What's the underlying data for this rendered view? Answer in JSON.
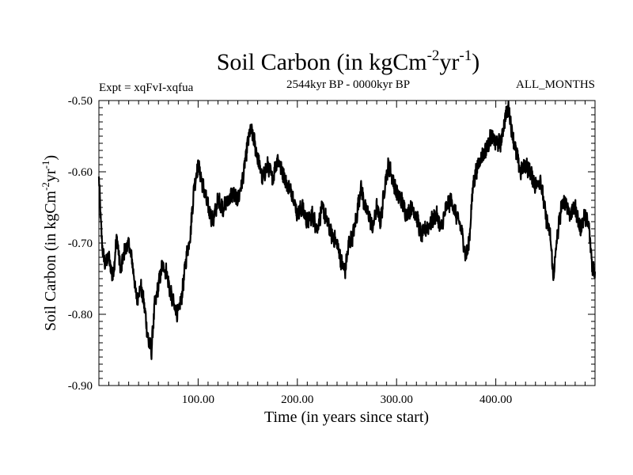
{
  "chart_data": {
    "type": "line",
    "title": "Soil Carbon (in kgCm",
    "title_exp1": "-2",
    "title_mid": "yr",
    "title_exp2": "-1",
    "title_end": ")",
    "subtitle_left": "Expt = xqFvI-xqfua",
    "subtitle_center": "2544kyr BP - 0000kyr BP",
    "subtitle_right": "ALL_MONTHS",
    "xlabel": "Time (in years since start)",
    "ylabel_pre": "Soil Carbon (in kgCm",
    "ylabel_exp1": "-2",
    "ylabel_mid": "yr",
    "ylabel_exp2": "-1",
    "ylabel_end": ")",
    "xlim": [
      0,
      500
    ],
    "ylim": [
      -0.9,
      -0.5
    ],
    "xticks": [
      100,
      200,
      300,
      400
    ],
    "xtick_labels": [
      "100.00",
      "200.00",
      "300.00",
      "400.00"
    ],
    "yticks": [
      -0.9,
      -0.8,
      -0.7,
      -0.6,
      -0.5
    ],
    "ytick_labels": [
      "-0.90",
      "-0.80",
      "-0.70",
      "-0.60",
      "-0.50"
    ],
    "series": [
      {
        "name": "Soil Carbon",
        "color": "#000000",
        "points": [
          [
            0,
            -0.61
          ],
          [
            3,
            -0.7
          ],
          [
            6,
            -0.73
          ],
          [
            10,
            -0.72
          ],
          [
            14,
            -0.75
          ],
          [
            18,
            -0.69
          ],
          [
            22,
            -0.74
          ],
          [
            26,
            -0.71
          ],
          [
            30,
            -0.7
          ],
          [
            34,
            -0.73
          ],
          [
            38,
            -0.78
          ],
          [
            42,
            -0.76
          ],
          [
            46,
            -0.79
          ],
          [
            50,
            -0.84
          ],
          [
            53,
            -0.85
          ],
          [
            56,
            -0.79
          ],
          [
            60,
            -0.76
          ],
          [
            64,
            -0.73
          ],
          [
            68,
            -0.74
          ],
          [
            72,
            -0.77
          ],
          [
            76,
            -0.79
          ],
          [
            80,
            -0.8
          ],
          [
            84,
            -0.77
          ],
          [
            88,
            -0.72
          ],
          [
            92,
            -0.69
          ],
          [
            96,
            -0.62
          ],
          [
            100,
            -0.59
          ],
          [
            105,
            -0.62
          ],
          [
            110,
            -0.65
          ],
          [
            115,
            -0.67
          ],
          [
            120,
            -0.64
          ],
          [
            125,
            -0.65
          ],
          [
            130,
            -0.64
          ],
          [
            135,
            -0.63
          ],
          [
            140,
            -0.64
          ],
          [
            145,
            -0.61
          ],
          [
            150,
            -0.56
          ],
          [
            153,
            -0.54
          ],
          [
            157,
            -0.56
          ],
          [
            160,
            -0.58
          ],
          [
            165,
            -0.61
          ],
          [
            170,
            -0.59
          ],
          [
            175,
            -0.61
          ],
          [
            180,
            -0.58
          ],
          [
            185,
            -0.6
          ],
          [
            190,
            -0.62
          ],
          [
            195,
            -0.63
          ],
          [
            200,
            -0.66
          ],
          [
            205,
            -0.65
          ],
          [
            210,
            -0.67
          ],
          [
            215,
            -0.66
          ],
          [
            220,
            -0.68
          ],
          [
            225,
            -0.65
          ],
          [
            230,
            -0.67
          ],
          [
            235,
            -0.69
          ],
          [
            240,
            -0.7
          ],
          [
            245,
            -0.73
          ],
          [
            248,
            -0.74
          ],
          [
            252,
            -0.7
          ],
          [
            256,
            -0.69
          ],
          [
            260,
            -0.66
          ],
          [
            264,
            -0.62
          ],
          [
            268,
            -0.65
          ],
          [
            272,
            -0.66
          ],
          [
            276,
            -0.68
          ],
          [
            280,
            -0.65
          ],
          [
            284,
            -0.67
          ],
          [
            288,
            -0.62
          ],
          [
            292,
            -0.59
          ],
          [
            296,
            -0.61
          ],
          [
            300,
            -0.63
          ],
          [
            305,
            -0.64
          ],
          [
            310,
            -0.66
          ],
          [
            315,
            -0.65
          ],
          [
            320,
            -0.66
          ],
          [
            325,
            -0.69
          ],
          [
            330,
            -0.68
          ],
          [
            335,
            -0.67
          ],
          [
            340,
            -0.66
          ],
          [
            345,
            -0.68
          ],
          [
            350,
            -0.65
          ],
          [
            355,
            -0.64
          ],
          [
            360,
            -0.66
          ],
          [
            365,
            -0.68
          ],
          [
            370,
            -0.72
          ],
          [
            373,
            -0.7
          ],
          [
            377,
            -0.62
          ],
          [
            380,
            -0.6
          ],
          [
            385,
            -0.58
          ],
          [
            390,
            -0.57
          ],
          [
            395,
            -0.55
          ],
          [
            400,
            -0.56
          ],
          [
            405,
            -0.56
          ],
          [
            410,
            -0.52
          ],
          [
            413,
            -0.51
          ],
          [
            416,
            -0.54
          ],
          [
            420,
            -0.57
          ],
          [
            425,
            -0.6
          ],
          [
            430,
            -0.59
          ],
          [
            435,
            -0.6
          ],
          [
            440,
            -0.62
          ],
          [
            445,
            -0.61
          ],
          [
            450,
            -0.66
          ],
          [
            455,
            -0.69
          ],
          [
            458,
            -0.75
          ],
          [
            462,
            -0.69
          ],
          [
            466,
            -0.65
          ],
          [
            470,
            -0.64
          ],
          [
            475,
            -0.66
          ],
          [
            480,
            -0.65
          ],
          [
            485,
            -0.68
          ],
          [
            490,
            -0.66
          ],
          [
            494,
            -0.68
          ],
          [
            497,
            -0.73
          ],
          [
            500,
            -0.74
          ]
        ]
      }
    ]
  }
}
